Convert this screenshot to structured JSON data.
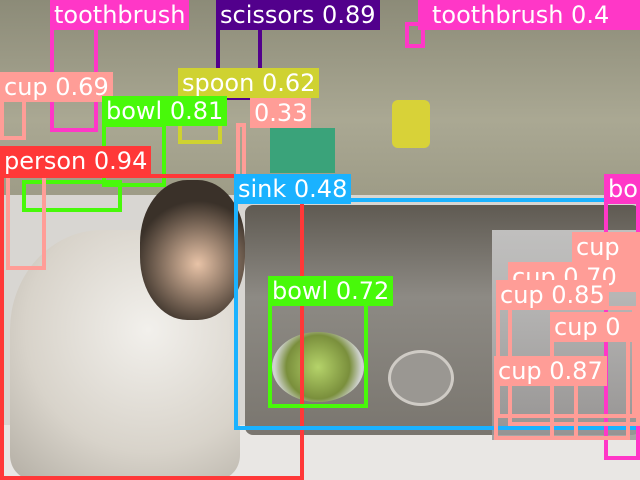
{
  "colors": {
    "toothbrush": "#ff37c7",
    "scissors": "#52008c",
    "cup": "#ff9d97",
    "spoon": "#cfd231",
    "bowl": "#48f90a",
    "person": "#ff3838",
    "sink": "#1ab2ff"
  },
  "labels": {
    "toothbrush_left": "toothbrush",
    "scissors": "scissors 0.89",
    "toothbrush_right": "toothbrush 0.4",
    "cup_top_left": "cup 0.69",
    "spoon": "spoon 0.62",
    "bowl_rack": "bowl 0.81",
    "cup_033": "0.33",
    "person": "person 0.94",
    "sink": "sink 0.48",
    "bo_right": "bo",
    "cup_right_top": "cup",
    "cup_right_070": "cup 0.70",
    "bowl_sink": "bowl 0.72",
    "cup_085": "cup 0.85",
    "cup_mid_right": "cup 0",
    "cup_087": "cup 0.87"
  }
}
